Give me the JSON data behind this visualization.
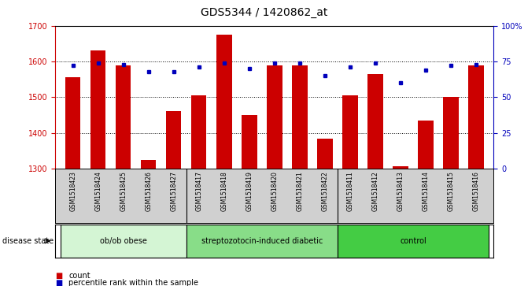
{
  "title": "GDS5344 / 1420862_at",
  "samples": [
    "GSM1518423",
    "GSM1518424",
    "GSM1518425",
    "GSM1518426",
    "GSM1518427",
    "GSM1518417",
    "GSM1518418",
    "GSM1518419",
    "GSM1518420",
    "GSM1518421",
    "GSM1518422",
    "GSM1518411",
    "GSM1518412",
    "GSM1518413",
    "GSM1518414",
    "GSM1518415",
    "GSM1518416"
  ],
  "counts": [
    1555,
    1630,
    1590,
    1325,
    1462,
    1505,
    1675,
    1450,
    1590,
    1590,
    1385,
    1505,
    1565,
    1308,
    1435,
    1500,
    1590
  ],
  "percentiles": [
    72,
    74,
    73,
    68,
    68,
    71,
    74,
    70,
    74,
    74,
    65,
    71,
    74,
    60,
    69,
    72,
    73
  ],
  "group_boundaries": [
    5,
    11
  ],
  "groups": [
    {
      "label": "ob/ob obese",
      "start": 0,
      "end": 5,
      "color": "#d4f5d4"
    },
    {
      "label": "streptozotocin-induced diabetic",
      "start": 5,
      "end": 11,
      "color": "#88dd88"
    },
    {
      "label": "control",
      "start": 11,
      "end": 17,
      "color": "#44cc44"
    }
  ],
  "ylim_left": [
    1300,
    1700
  ],
  "ylim_right": [
    0,
    100
  ],
  "bar_color": "#cc0000",
  "dot_color": "#0000bb",
  "grid_color": "#000000",
  "plot_bg": "#ffffff",
  "label_bg": "#d0d0d0",
  "label_count": "count",
  "label_percentile": "percentile rank within the sample",
  "disease_state_label": "disease state",
  "title_fontsize": 10,
  "tick_fontsize": 7,
  "sample_fontsize": 5.5,
  "group_fontsize": 7,
  "legend_fontsize": 7
}
